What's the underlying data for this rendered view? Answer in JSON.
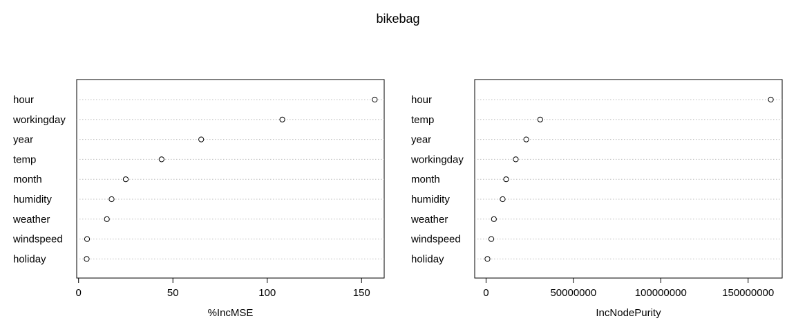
{
  "title": "bikebag",
  "chart_data": [
    {
      "type": "scatter",
      "subtype": "dotchart",
      "xlabel": "%IncMSE",
      "ylabel": "",
      "categories": [
        "hour",
        "workingday",
        "year",
        "temp",
        "month",
        "humidity",
        "weather",
        "windspeed",
        "holiday"
      ],
      "values": [
        157,
        108,
        65,
        44,
        25,
        17.5,
        15,
        4.5,
        4.3
      ],
      "xlim": [
        -1,
        162
      ],
      "xticks": [
        0,
        50,
        100,
        150
      ],
      "xtick_labels": [
        "0",
        "50",
        "100",
        "150"
      ],
      "grid": "dotted horizontal"
    },
    {
      "type": "scatter",
      "subtype": "dotchart",
      "xlabel": "IncNodePurity",
      "ylabel": "",
      "categories": [
        "hour",
        "temp",
        "year",
        "workingday",
        "month",
        "humidity",
        "weather",
        "windspeed",
        "holiday"
      ],
      "values": [
        163000000,
        31000000,
        23000000,
        17000000,
        11500000,
        9500000,
        4500000,
        3000000,
        800000
      ],
      "xlim": [
        -6500000,
        169500000
      ],
      "xticks": [
        0,
        50000000,
        100000000,
        150000000
      ],
      "xtick_labels": [
        "0",
        "50000000",
        "100000000",
        "150000000"
      ],
      "grid": "dotted horizontal"
    }
  ]
}
